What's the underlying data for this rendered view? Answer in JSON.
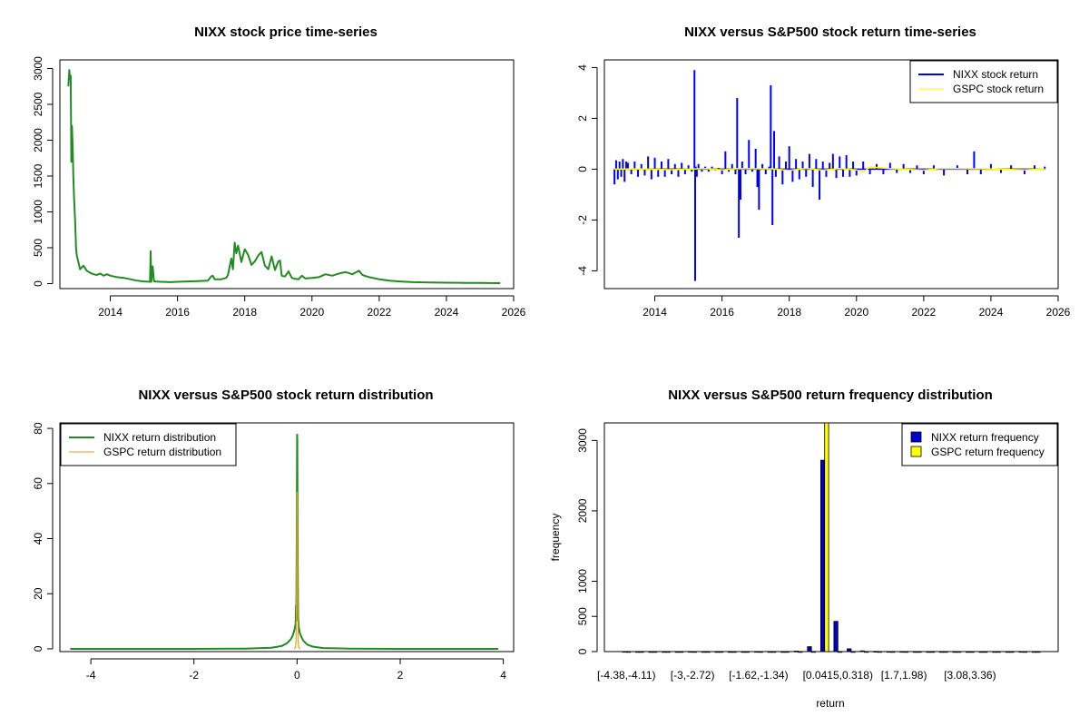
{
  "chart_data": [
    {
      "type": "line",
      "title": "NIXX stock price time-series",
      "xlabel": "",
      "ylabel": "",
      "xlim": [
        2012.5,
        2026
      ],
      "ylim": [
        -70,
        3120
      ],
      "x_ticks": [
        2014,
        2016,
        2018,
        2020,
        2022,
        2024,
        2026
      ],
      "x_tick_labels": [
        "2014",
        "2016",
        "2018",
        "2020",
        "2022",
        "2024",
        "2026"
      ],
      "y_ticks": [
        0,
        500,
        1000,
        1500,
        2000,
        2500,
        3000
      ],
      "y_tick_labels": [
        "0",
        "500",
        "1000",
        "1500",
        "2000",
        "2500",
        "3000"
      ],
      "colors": {
        "line": "#228b22"
      },
      "series": [
        {
          "name": "NIXX price",
          "x": [
            2012.75,
            2012.78,
            2012.8,
            2012.82,
            2012.84,
            2012.86,
            2012.88,
            2012.9,
            2012.92,
            2012.95,
            2012.98,
            2013.0,
            2013.05,
            2013.1,
            2013.2,
            2013.3,
            2013.4,
            2013.5,
            2013.6,
            2013.7,
            2013.8,
            2013.9,
            2014.0,
            2014.2,
            2014.4,
            2014.6,
            2014.8,
            2015.0,
            2015.18,
            2015.2,
            2015.22,
            2015.26,
            2015.3,
            2015.5,
            2015.8,
            2016.0,
            2016.3,
            2016.6,
            2016.9,
            2017.0,
            2017.05,
            2017.1,
            2017.3,
            2017.45,
            2017.5,
            2017.6,
            2017.65,
            2017.7,
            2017.75,
            2017.8,
            2017.9,
            2018.0,
            2018.1,
            2018.2,
            2018.3,
            2018.4,
            2018.5,
            2018.6,
            2018.7,
            2018.8,
            2018.9,
            2019.0,
            2019.05,
            2019.1,
            2019.2,
            2019.3,
            2019.4,
            2019.5,
            2019.6,
            2019.7,
            2019.8,
            2020.0,
            2020.2,
            2020.4,
            2020.6,
            2020.8,
            2021.0,
            2021.2,
            2021.4,
            2021.5,
            2021.7,
            2022.0,
            2022.3,
            2022.6,
            2023.0,
            2023.5,
            2024.0,
            2024.5,
            2025.0,
            2025.6
          ],
          "y": [
            2750,
            2980,
            2850,
            2900,
            1700,
            2200,
            1900,
            1500,
            1200,
            900,
            500,
            400,
            300,
            200,
            250,
            180,
            150,
            130,
            120,
            140,
            110,
            130,
            110,
            90,
            80,
            60,
            40,
            30,
            25,
            450,
            25,
            240,
            30,
            25,
            20,
            25,
            30,
            35,
            40,
            100,
            110,
            60,
            60,
            80,
            120,
            350,
            200,
            570,
            420,
            530,
            300,
            480,
            400,
            260,
            310,
            390,
            440,
            250,
            200,
            380,
            190,
            310,
            320,
            110,
            100,
            170,
            80,
            65,
            60,
            110,
            70,
            80,
            90,
            130,
            110,
            140,
            160,
            130,
            180,
            120,
            90,
            60,
            40,
            30,
            20,
            15,
            12,
            10,
            8,
            6
          ]
        }
      ]
    },
    {
      "type": "line",
      "title": "NIXX versus S&P500 stock return time-series",
      "xlabel": "",
      "ylabel": "",
      "xlim": [
        2012.5,
        2026
      ],
      "ylim": [
        -4.7,
        4.3
      ],
      "x_ticks": [
        2014,
        2016,
        2018,
        2020,
        2022,
        2024,
        2026
      ],
      "x_tick_labels": [
        "2014",
        "2016",
        "2018",
        "2020",
        "2022",
        "2024",
        "2026"
      ],
      "y_ticks": [
        -4,
        -2,
        0,
        2,
        4
      ],
      "y_tick_labels": [
        "-4",
        "-2",
        "0",
        "2",
        "4"
      ],
      "legend": {
        "position": "top-right",
        "entries": [
          "NIXX stock return",
          "GSPC stock return"
        ]
      },
      "colors": {
        "nixx": "#0000ff",
        "gspc": "#ffff00"
      },
      "series": [
        {
          "name": "NIXX stock return",
          "x": [
            2012.8,
            2012.85,
            2012.9,
            2012.95,
            2013.0,
            2013.05,
            2013.1,
            2013.15,
            2013.2,
            2013.3,
            2013.4,
            2013.5,
            2013.6,
            2013.7,
            2013.8,
            2013.9,
            2014.0,
            2014.1,
            2014.2,
            2014.3,
            2014.4,
            2014.5,
            2014.6,
            2014.7,
            2014.8,
            2014.9,
            2015.0,
            2015.1,
            2015.18,
            2015.2,
            2015.22,
            2015.25,
            2015.3,
            2015.4,
            2015.5,
            2015.6,
            2015.7,
            2015.8,
            2015.9,
            2016.0,
            2016.1,
            2016.2,
            2016.3,
            2016.4,
            2016.45,
            2016.5,
            2016.55,
            2016.6,
            2016.7,
            2016.8,
            2016.9,
            2017.0,
            2017.05,
            2017.1,
            2017.2,
            2017.3,
            2017.4,
            2017.45,
            2017.5,
            2017.55,
            2017.6,
            2017.7,
            2017.8,
            2017.9,
            2018.0,
            2018.1,
            2018.2,
            2018.3,
            2018.4,
            2018.5,
            2018.6,
            2018.7,
            2018.8,
            2018.9,
            2019.0,
            2019.1,
            2019.2,
            2019.3,
            2019.4,
            2019.5,
            2019.6,
            2019.7,
            2019.8,
            2019.9,
            2020.0,
            2020.2,
            2020.4,
            2020.6,
            2020.8,
            2021.0,
            2021.2,
            2021.4,
            2021.6,
            2021.8,
            2022.0,
            2022.3,
            2022.6,
            2023.0,
            2023.3,
            2023.5,
            2023.7,
            2024.0,
            2024.3,
            2024.6,
            2025.0,
            2025.3,
            2025.6
          ],
          "y": [
            -0.6,
            0.35,
            -0.4,
            0.3,
            -0.3,
            0.4,
            -0.5,
            0.3,
            0.25,
            -0.2,
            0.3,
            -0.3,
            0.2,
            -0.25,
            0.5,
            -0.4,
            0.45,
            -0.3,
            0.3,
            -0.3,
            0.4,
            -0.2,
            0.2,
            -0.3,
            0.25,
            -0.2,
            0.15,
            -0.1,
            3.9,
            -4.4,
            0.1,
            -0.3,
            0.2,
            -0.1,
            0.1,
            -0.1,
            0.1,
            -0.05,
            0.05,
            -0.2,
            0.7,
            -0.1,
            0.2,
            -0.2,
            2.8,
            -2.7,
            -1.2,
            0.3,
            -0.2,
            1.15,
            -0.1,
            0.8,
            -0.7,
            -1.6,
            0.2,
            -0.2,
            0.1,
            3.3,
            -2.2,
            1.5,
            -0.3,
            0.5,
            -0.6,
            0.3,
            0.9,
            -0.5,
            0.4,
            -0.4,
            0.3,
            -0.3,
            0.6,
            -0.7,
            0.4,
            -1.2,
            0.3,
            -0.3,
            0.25,
            0.6,
            -0.35,
            0.5,
            -0.3,
            0.55,
            -0.3,
            0.3,
            -0.25,
            0.3,
            -0.2,
            0.2,
            -0.2,
            0.25,
            -0.15,
            0.2,
            -0.15,
            0.15,
            -0.2,
            0.15,
            -0.25,
            0.15,
            -0.2,
            0.7,
            -0.2,
            0.2,
            -0.15,
            0.15,
            -0.2,
            0.15,
            0.1
          ]
        },
        {
          "name": "GSPC stock return",
          "x": [
            2012.8,
            2013.5,
            2014.5,
            2015.5,
            2016.0,
            2016.5,
            2017.5,
            2018.0,
            2018.5,
            2019.0,
            2019.5,
            2020.0,
            2020.2,
            2020.4,
            2021.0,
            2022.0,
            2022.5,
            2023.0,
            2024.0,
            2025.0,
            2025.6
          ],
          "y": [
            0.0,
            0.01,
            -0.02,
            0.02,
            -0.03,
            0.02,
            0.01,
            -0.05,
            0.03,
            -0.04,
            0.02,
            -0.03,
            -0.12,
            0.09,
            0.02,
            -0.04,
            0.03,
            0.02,
            0.01,
            -0.03,
            0.01
          ]
        }
      ]
    },
    {
      "type": "line",
      "title": "NIXX versus S&P500 stock return distribution",
      "xlabel": "",
      "ylabel": "",
      "xlim": [
        -4.6,
        4.2
      ],
      "ylim": [
        -1,
        82
      ],
      "x_ticks": [
        -4,
        -2,
        0,
        2,
        4
      ],
      "x_tick_labels": [
        "-4",
        "-2",
        "0",
        "2",
        "4"
      ],
      "y_ticks": [
        0,
        20,
        40,
        60,
        80
      ],
      "y_tick_labels": [
        "0",
        "20",
        "40",
        "60",
        "80"
      ],
      "legend": {
        "position": "top-left",
        "entries": [
          "NIXX return distribution",
          "GSPC return distribution"
        ]
      },
      "colors": {
        "nixx": "#228b22",
        "gspc": "#daa520"
      },
      "series": [
        {
          "name": "NIXX return distribution",
          "x": [
            -4.4,
            -3.0,
            -2.0,
            -1.0,
            -0.5,
            -0.3,
            -0.2,
            -0.12,
            -0.08,
            -0.05,
            -0.03,
            -0.02,
            -0.015,
            -0.01,
            -0.005,
            0.0,
            0.005,
            0.01,
            0.015,
            0.02,
            0.03,
            0.05,
            0.08,
            0.12,
            0.2,
            0.3,
            0.5,
            1.0,
            2.0,
            3.0,
            3.9
          ],
          "y": [
            0,
            0,
            0,
            0.1,
            0.4,
            1.0,
            2.0,
            3.5,
            5.0,
            7.0,
            9.0,
            16.0,
            10.0,
            30.0,
            50.0,
            78.0,
            76.0,
            45.0,
            25.0,
            12.0,
            8.0,
            6.0,
            4.5,
            3.0,
            1.5,
            0.8,
            0.3,
            0.1,
            0,
            0,
            0
          ]
        },
        {
          "name": "GSPC return distribution",
          "x": [
            -0.06,
            -0.03,
            -0.02,
            -0.01,
            -0.005,
            0.0,
            0.005,
            0.01,
            0.02,
            0.03,
            0.06
          ],
          "y": [
            0,
            0.5,
            3.0,
            20.0,
            45.0,
            57.0,
            45.0,
            20.0,
            3.0,
            0.5,
            0
          ]
        }
      ]
    },
    {
      "type": "bar",
      "title": "NIXX versus S&P500 return frequency distribution",
      "xlabel": "return",
      "ylabel": "frequency",
      "ylim": [
        0,
        3250
      ],
      "y_ticks": [
        0,
        500,
        1000,
        2000,
        3000
      ],
      "y_tick_labels": [
        "0",
        "500",
        "1000",
        "2000",
        "3000"
      ],
      "x_tick_labels": [
        "[-4.38,-4.11)",
        "[-3,-2.72)",
        "[-1.62,-1.34)",
        "[0.0415,0.318)",
        "[1.7,1.98)",
        "[3.08,3.36)"
      ],
      "x_tick_bins": [
        0,
        5,
        10,
        16,
        21,
        26
      ],
      "legend": {
        "position": "top-right",
        "entries": [
          "NIXX return frequency",
          "GSPC return frequency"
        ]
      },
      "colors": {
        "nixx": "#0000cd",
        "gspc": "#ffff00"
      },
      "series": [
        {
          "name": "NIXX return frequency",
          "values": [
            1,
            0,
            0,
            0,
            0,
            1,
            0,
            0,
            0,
            0,
            1,
            0,
            0,
            6,
            70,
            2720,
            430,
            40,
            10,
            2,
            1,
            1,
            0,
            0,
            0,
            0,
            0,
            0,
            0,
            0,
            1,
            0
          ]
        },
        {
          "name": "GSPC return frequency",
          "values": [
            0,
            0,
            0,
            0,
            0,
            0,
            0,
            0,
            0,
            0,
            0,
            0,
            0,
            0,
            0,
            3300,
            0,
            0,
            0,
            0,
            0,
            0,
            0,
            0,
            0,
            0,
            0,
            0,
            0,
            0,
            0,
            0
          ]
        }
      ]
    }
  ]
}
